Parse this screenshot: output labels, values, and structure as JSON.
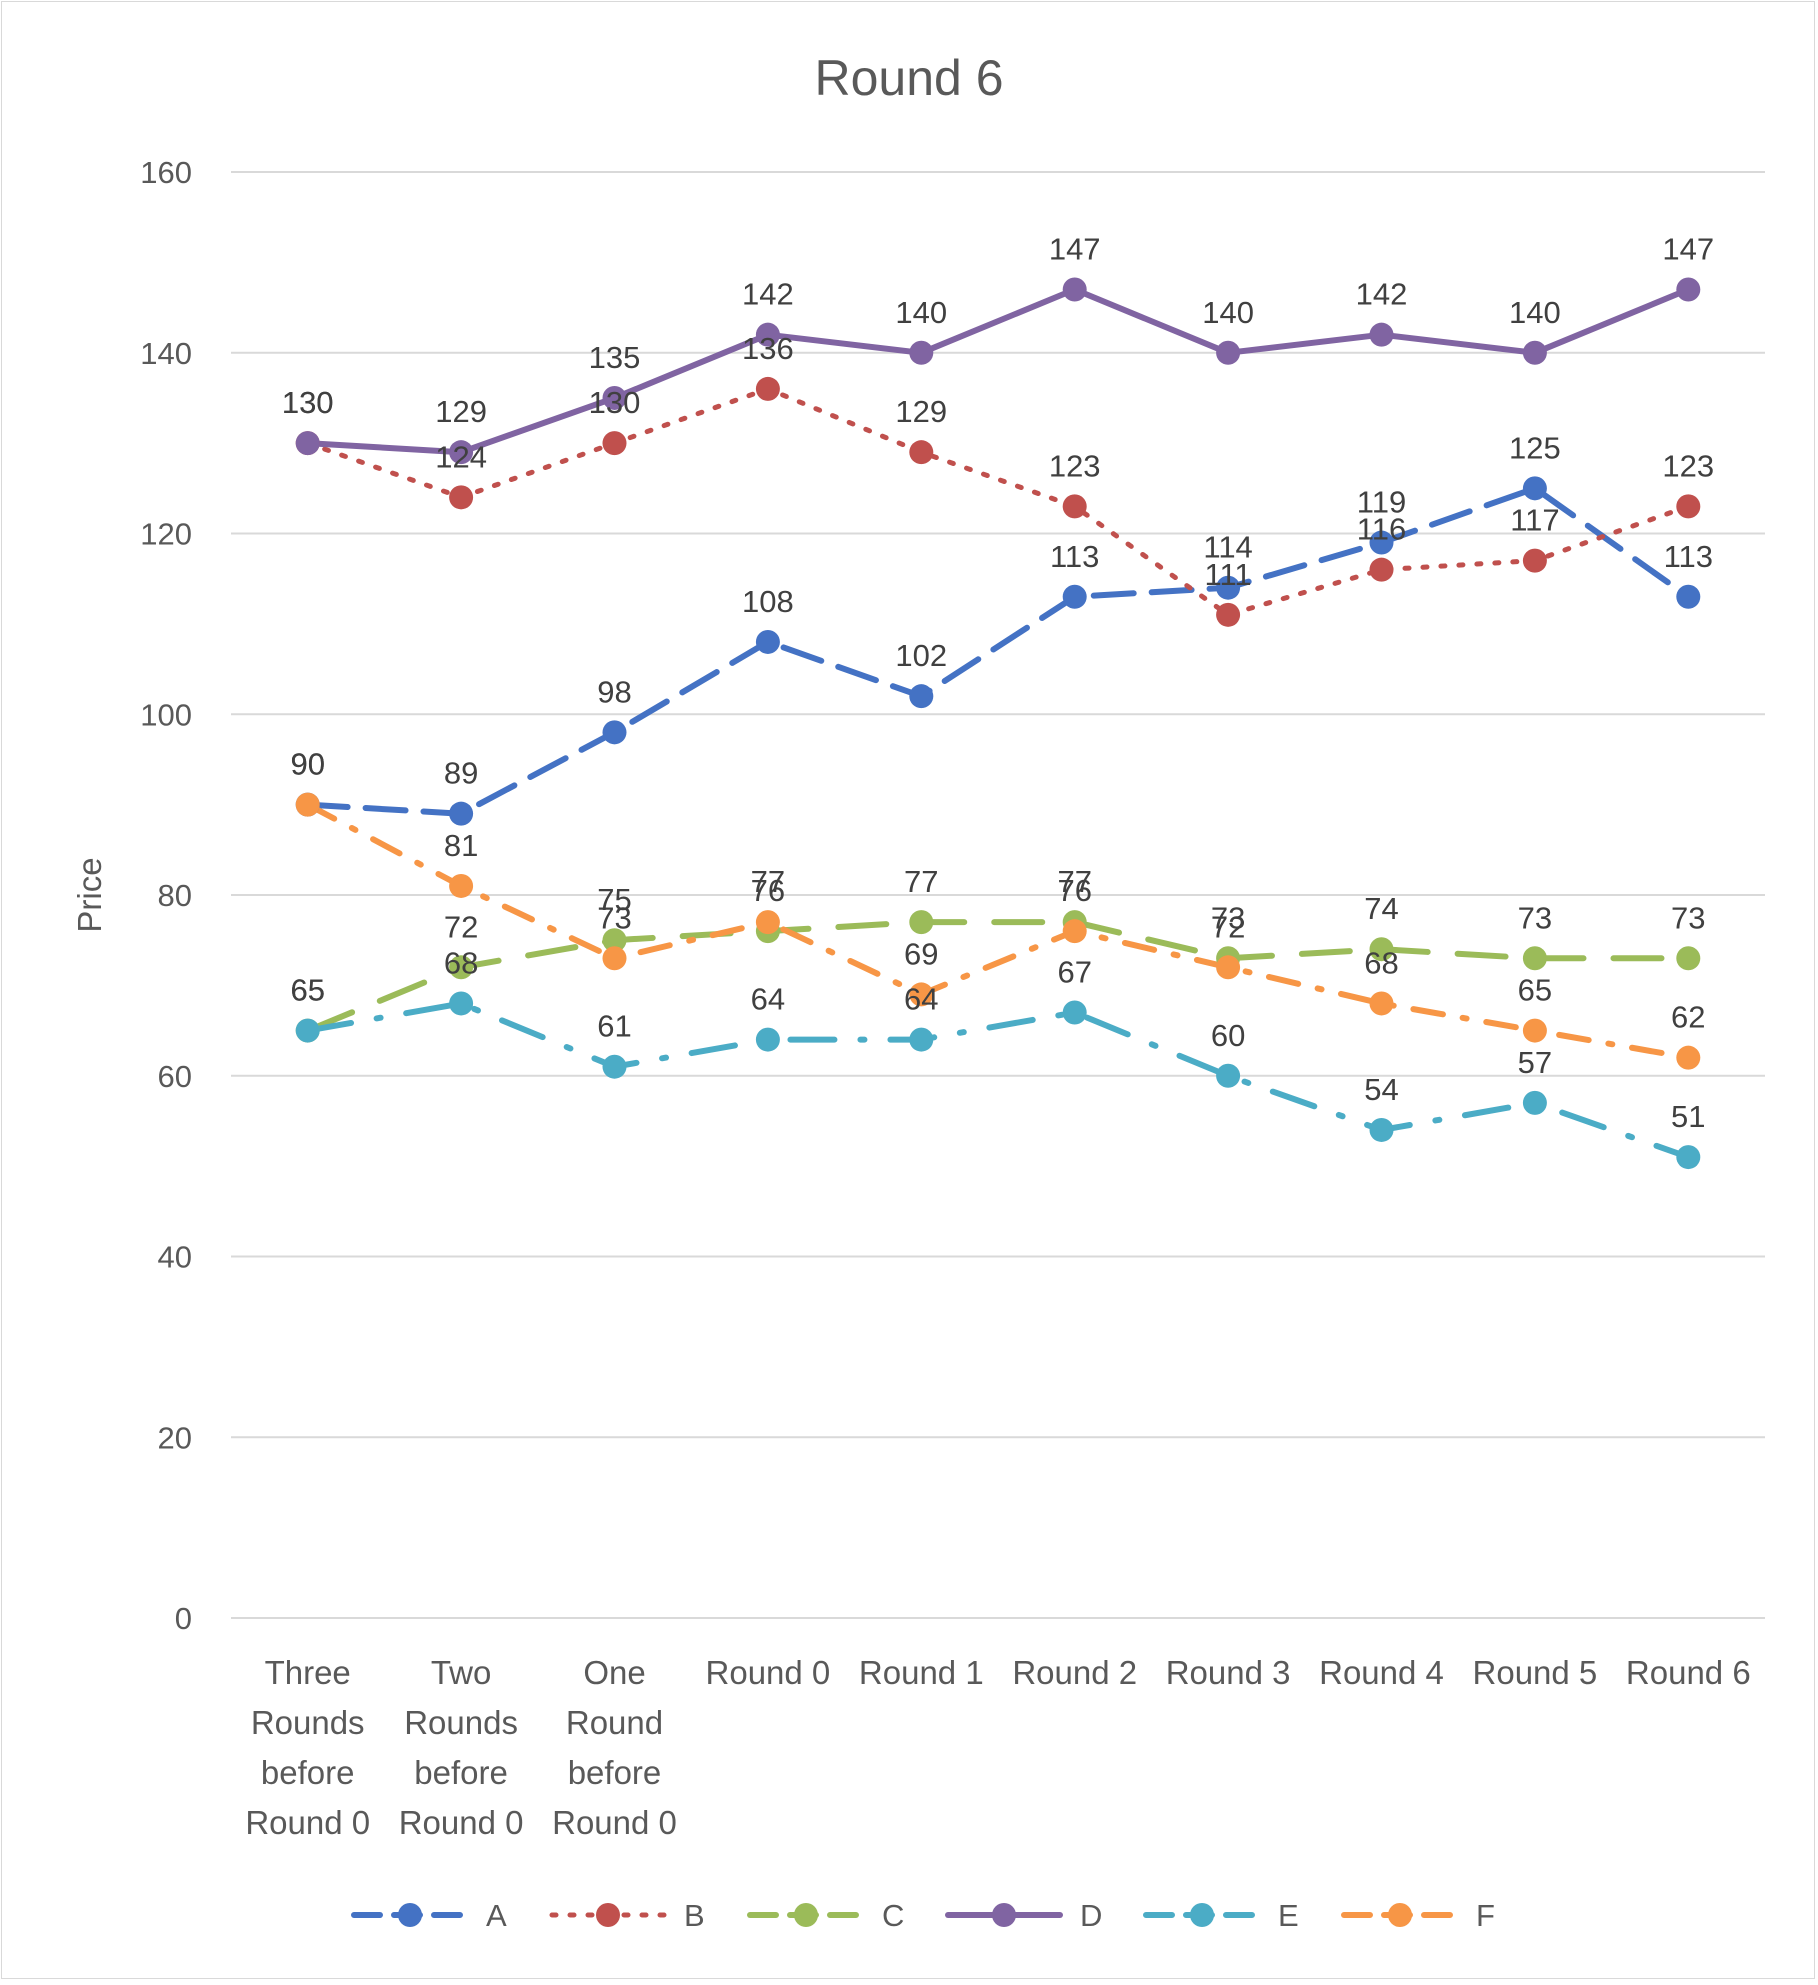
{
  "chart_data": {
    "type": "line",
    "title": "Round 6",
    "xlabel": "",
    "ylabel": "Price",
    "ylim": [
      0,
      160
    ],
    "yticks": [
      0,
      20,
      40,
      60,
      80,
      100,
      120,
      140,
      160
    ],
    "grid": true,
    "legend": "bottom",
    "categories": [
      [
        "Three",
        "Rounds",
        "before",
        "Round 0"
      ],
      [
        "Two",
        "Rounds",
        "before",
        "Round 0"
      ],
      [
        "One",
        "Round",
        "before",
        "Round 0"
      ],
      [
        "Round 0"
      ],
      [
        "Round 1"
      ],
      [
        "Round 2"
      ],
      [
        "Round 3"
      ],
      [
        "Round 4"
      ],
      [
        "Round 5"
      ],
      [
        "Round 6"
      ]
    ],
    "series": [
      {
        "name": "A",
        "color": "#4472c4",
        "dash": "long-dash",
        "values": [
          90,
          89,
          98,
          108,
          102,
          113,
          114,
          119,
          125,
          113
        ]
      },
      {
        "name": "B",
        "color": "#c0504d",
        "dash": "dot",
        "values": [
          130,
          124,
          130,
          136,
          129,
          123,
          111,
          116,
          117,
          123
        ]
      },
      {
        "name": "C",
        "color": "#9bbb59",
        "dash": "long-dash-gap",
        "values": [
          65,
          72,
          75,
          76,
          77,
          77,
          73,
          74,
          73,
          73
        ]
      },
      {
        "name": "D",
        "color": "#8064a2",
        "dash": "solid",
        "values": [
          130,
          129,
          135,
          142,
          140,
          147,
          140,
          142,
          140,
          147
        ]
      },
      {
        "name": "E",
        "color": "#4bacc6",
        "dash": "long-dash-dot",
        "values": [
          65,
          68,
          61,
          64,
          64,
          67,
          60,
          54,
          57,
          51
        ]
      },
      {
        "name": "F",
        "color": "#f79646",
        "dash": "dash-dot",
        "values": [
          90,
          81,
          73,
          77,
          69,
          76,
          72,
          68,
          65,
          62
        ]
      }
    ]
  }
}
